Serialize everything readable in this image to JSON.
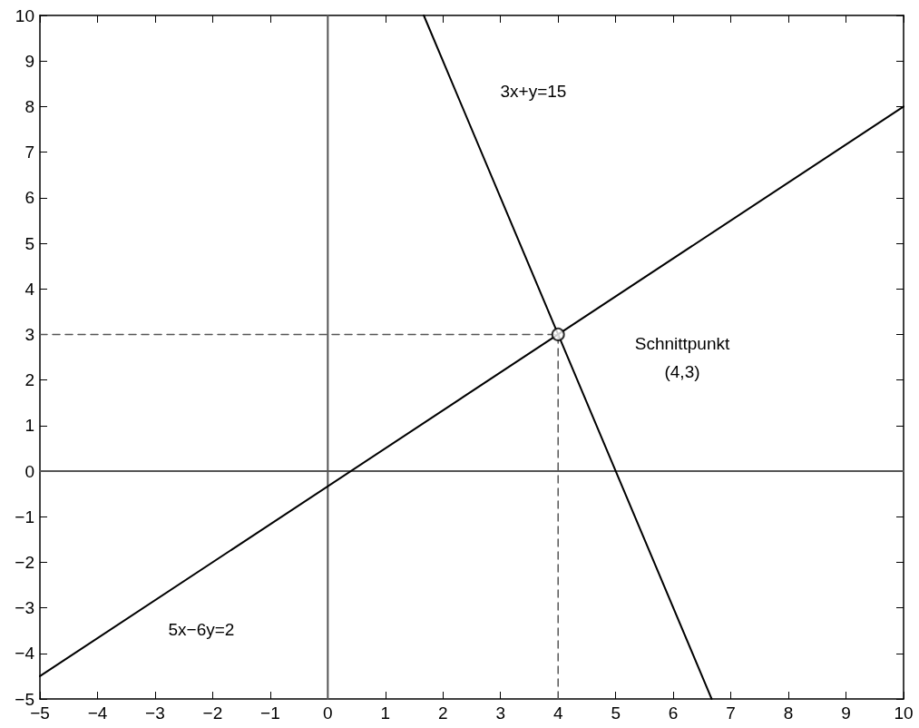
{
  "chart_data": {
    "type": "line",
    "xlim": [
      -5,
      10
    ],
    "xticks": [
      {
        "value": -5,
        "label": "−5"
      },
      {
        "value": -4,
        "label": "−4"
      },
      {
        "value": -3,
        "label": "−3"
      },
      {
        "value": -2,
        "label": "−2"
      },
      {
        "value": -1,
        "label": "−1"
      },
      0,
      1,
      2,
      3,
      4,
      5,
      6,
      7,
      8,
      9,
      10
    ],
    "ylim": [
      -5,
      10
    ],
    "yticks": [
      {
        "value": -5,
        "label": "−5"
      },
      {
        "value": -4,
        "label": "−4"
      },
      {
        "value": -3,
        "label": "−3"
      },
      {
        "value": -2,
        "label": "−2"
      },
      {
        "value": -1,
        "label": "−1"
      },
      0,
      1,
      2,
      3,
      4,
      5,
      6,
      7,
      8,
      9,
      10
    ],
    "series": [
      {
        "color": "#555555",
        "x": [
          0,
          0
        ],
        "values": [
          -5,
          10
        ]
      },
      {
        "color": "#555555",
        "x": [
          -5,
          10
        ],
        "values": [
          0,
          0
        ]
      },
      {
        "color": "#000000",
        "x": [
          1.667,
          6.667
        ],
        "values": [
          10,
          -5
        ]
      },
      {
        "color": "#000000",
        "x": [
          -5,
          10
        ],
        "values": [
          -4.5,
          8
        ]
      },
      {
        "color": "#555555",
        "line_style": "dashed",
        "x": [
          -5,
          4
        ],
        "values": [
          3,
          3
        ]
      },
      {
        "color": "#555555",
        "line_style": "dashed",
        "x": [
          4,
          4
        ],
        "values": [
          -5,
          3
        ]
      },
      {
        "type": "scatter",
        "color": "#000000",
        "marker": "circle",
        "x": [
          4
        ],
        "values": [
          3
        ]
      }
    ],
    "annotations": [
      "3x+y=15",
      "5x−6y=2",
      "Schnittpunkt\n(4,3)"
    ],
    "grid": false
  }
}
